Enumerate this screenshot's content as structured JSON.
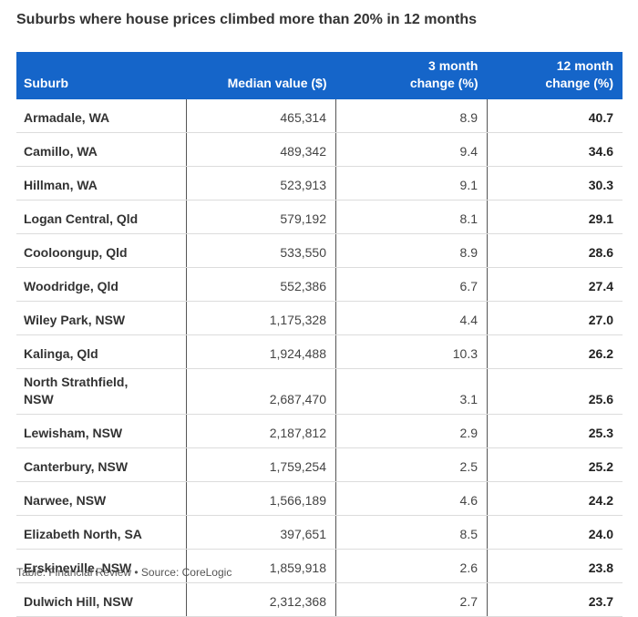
{
  "title": "Suburbs where house prices climbed more than 20% in 12 months",
  "footer": "Table: Financial Review • Source: CoreLogic",
  "chart_data": {
    "type": "table",
    "title": "Suburbs where house prices climbed more than 20% in 12 months",
    "columns": [
      "Suburb",
      "Median value ($)",
      "3 month change (%)",
      "12 month change (%)"
    ],
    "column_header_lines": [
      [
        "Suburb"
      ],
      [
        "Median value ($)"
      ],
      [
        "3 month",
        "change (%)"
      ],
      [
        "12 month",
        "change (%)"
      ]
    ],
    "rows": [
      [
        "Armadale, WA",
        "465,314",
        "8.9",
        "40.7"
      ],
      [
        "Camillo, WA",
        "489,342",
        "9.4",
        "34.6"
      ],
      [
        "Hillman, WA",
        "523,913",
        "9.1",
        "30.3"
      ],
      [
        "Logan Central, Qld",
        "579,192",
        "8.1",
        "29.1"
      ],
      [
        "Cooloongup, Qld",
        "533,550",
        "8.9",
        "28.6"
      ],
      [
        "Woodridge, Qld",
        "552,386",
        "6.7",
        "27.4"
      ],
      [
        "Wiley Park, NSW",
        "1,175,328",
        "4.4",
        "27.0"
      ],
      [
        "Kalinga, Qld",
        "1,924,488",
        "10.3",
        "26.2"
      ],
      [
        "North Strathfield, NSW",
        "2,687,470",
        "3.1",
        "25.6"
      ],
      [
        "Lewisham, NSW",
        "2,187,812",
        "2.9",
        "25.3"
      ],
      [
        "Canterbury, NSW",
        "1,759,254",
        "2.5",
        "25.2"
      ],
      [
        "Narwee, NSW",
        "1,566,189",
        "4.6",
        "24.2"
      ],
      [
        "Elizabeth North, SA",
        "397,651",
        "8.5",
        "24.0"
      ],
      [
        "Erskineville, NSW",
        "1,859,918",
        "2.6",
        "23.8"
      ],
      [
        "Dulwich Hill, NSW",
        "2,312,368",
        "2.7",
        "23.7"
      ]
    ],
    "header_color": "#1565c9"
  }
}
